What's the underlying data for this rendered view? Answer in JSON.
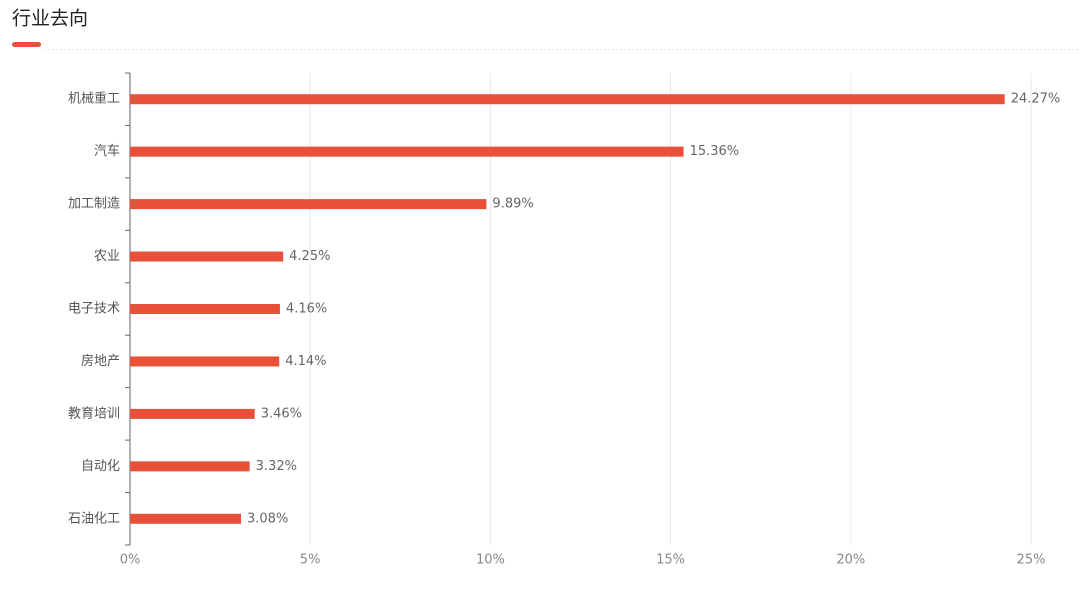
{
  "chart_data": {
    "type": "bar",
    "orientation": "horizontal",
    "title": "行业去向",
    "categories": [
      "机械重工",
      "汽车",
      "加工制造",
      "农业",
      "电子技术",
      "房地产",
      "教育培训",
      "自动化",
      "石油化工"
    ],
    "values": [
      24.27,
      15.36,
      9.89,
      4.25,
      4.16,
      4.14,
      3.46,
      3.32,
      3.08
    ],
    "value_labels": [
      "24.27%",
      "15.36%",
      "9.89%",
      "4.25%",
      "4.16%",
      "4.14%",
      "3.46%",
      "3.32%",
      "3.08%"
    ],
    "color": "#e8503a",
    "xlim": [
      0,
      25
    ],
    "xticks": [
      {
        "value": 0,
        "label": "0%"
      },
      {
        "value": 5,
        "label": "5%"
      },
      {
        "value": 10,
        "label": "10%"
      },
      {
        "value": 15,
        "label": "15%"
      },
      {
        "value": 20,
        "label": "20%"
      },
      {
        "value": 25,
        "label": "25%"
      }
    ],
    "grid": true
  }
}
